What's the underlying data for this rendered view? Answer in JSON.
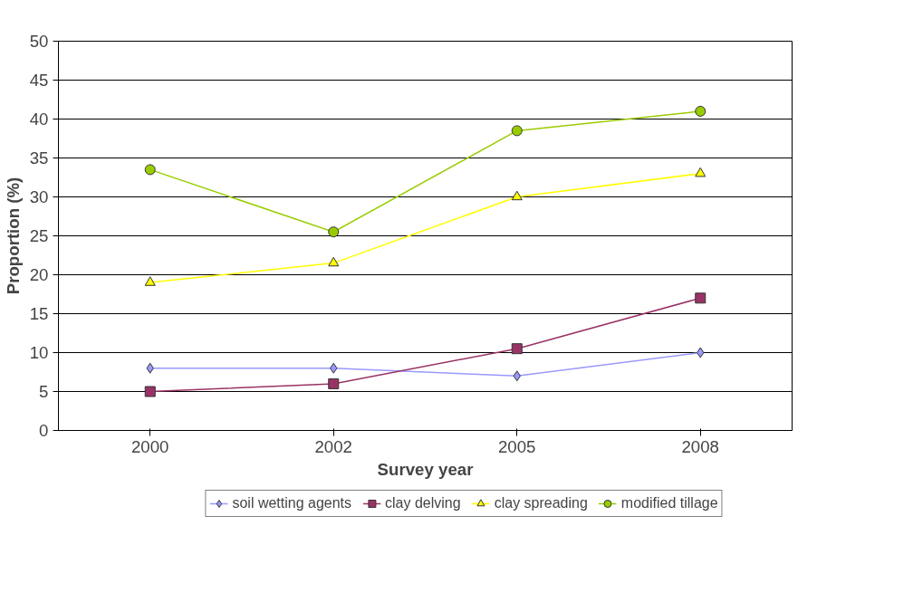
{
  "chart_data": {
    "type": "line",
    "xlabel": "Survey year",
    "ylabel": "Proportion (%)",
    "categories": [
      "2000",
      "2002",
      "2005",
      "2008"
    ],
    "ylim": [
      0,
      50
    ],
    "yticks": [
      0,
      5,
      10,
      15,
      20,
      25,
      30,
      35,
      40,
      45,
      50
    ],
    "grid": "y",
    "legend": "bottom",
    "series": [
      {
        "name": "soil wetting agents",
        "color": "#9999ff",
        "marker": "diamond",
        "values": [
          8,
          8,
          7,
          10
        ]
      },
      {
        "name": "clay delving",
        "color": "#993366",
        "marker": "square",
        "values": [
          5,
          6,
          10.5,
          17
        ]
      },
      {
        "name": "clay spreading",
        "color": "#ffff00",
        "marker": "triangle",
        "values": [
          19,
          21.5,
          30,
          33
        ]
      },
      {
        "name": "modified tillage",
        "color": "#99cc00",
        "marker": "circle",
        "values": [
          33.5,
          25.5,
          38.5,
          41
        ]
      }
    ]
  }
}
